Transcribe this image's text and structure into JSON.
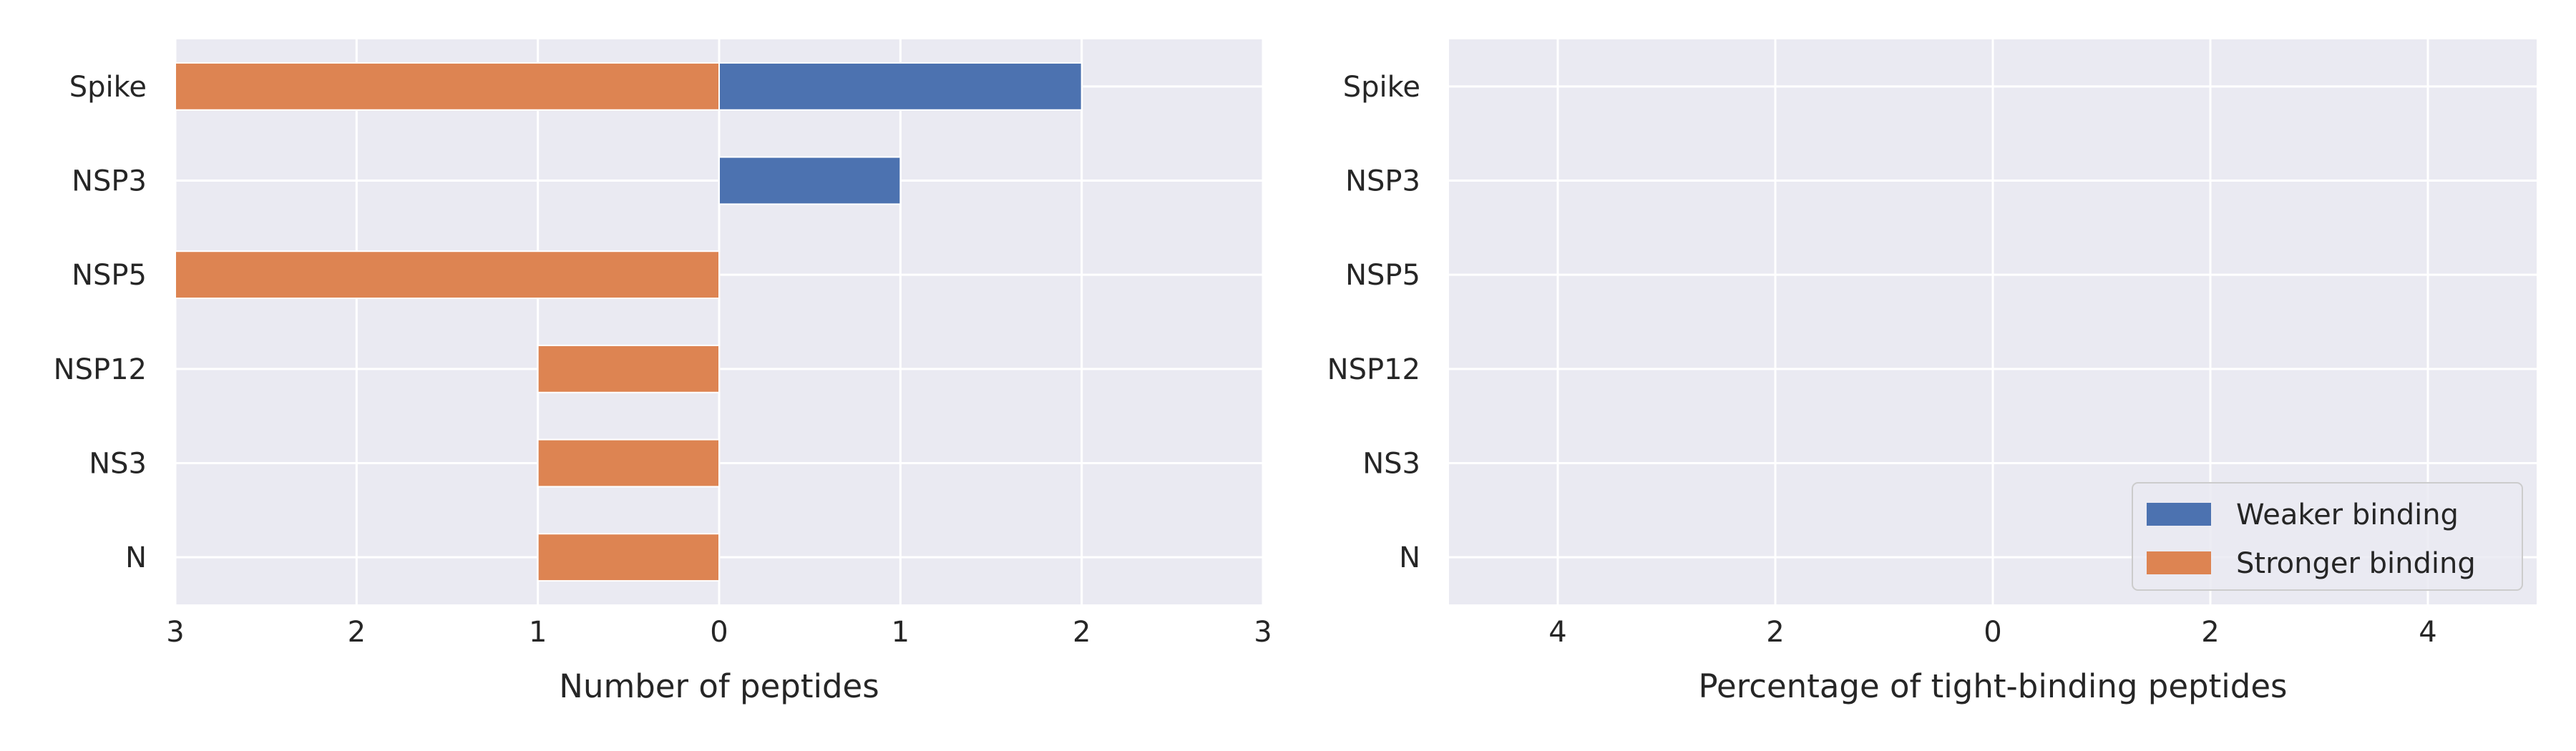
{
  "chart_data": [
    {
      "type": "bar",
      "orientation": "horizontal",
      "layout": "diverging",
      "categories": [
        "Spike",
        "NSP3",
        "NSP5",
        "NSP12",
        "NS3",
        "N"
      ],
      "series": [
        {
          "name": "Weaker binding",
          "color": "#4c72b0",
          "direction": "right",
          "values": [
            2,
            1,
            0,
            0,
            0,
            0
          ]
        },
        {
          "name": "Stronger binding",
          "color": "#dd8452",
          "direction": "left",
          "values": [
            3,
            0,
            3,
            1,
            1,
            1
          ]
        }
      ],
      "xlabel": "Number of peptides",
      "xlim": [
        -3,
        3
      ],
      "xticks": [
        -3,
        -2,
        -1,
        0,
        1,
        2,
        3
      ],
      "xtick_labels": [
        "3",
        "2",
        "1",
        "0",
        "1",
        "2",
        "3"
      ],
      "grid": true,
      "background": "#eaeaf2"
    },
    {
      "type": "bar",
      "orientation": "horizontal",
      "layout": "diverging",
      "categories": [
        "Spike",
        "NSP3",
        "NSP5",
        "NSP12",
        "NS3",
        "N"
      ],
      "series": [
        {
          "name": "Weaker binding",
          "color": "#4c72b0",
          "direction": "right",
          "values": [
            0,
            0,
            0,
            0,
            0,
            0
          ]
        },
        {
          "name": "Stronger binding",
          "color": "#dd8452",
          "direction": "left",
          "values": [
            0,
            0,
            0,
            0,
            0,
            0
          ]
        }
      ],
      "xlabel": "Percentage of tight-binding peptides",
      "xlim": [
        -5,
        5
      ],
      "xticks": [
        -4,
        -2,
        0,
        2,
        4
      ],
      "xtick_labels": [
        "4",
        "2",
        "0",
        "2",
        "4"
      ],
      "grid": true,
      "background": "#eaeaf2",
      "legend": {
        "position": "lower-right",
        "entries": [
          {
            "label": "Weaker binding",
            "color": "#4c72b0"
          },
          {
            "label": "Stronger binding",
            "color": "#dd8452"
          }
        ]
      }
    }
  ]
}
